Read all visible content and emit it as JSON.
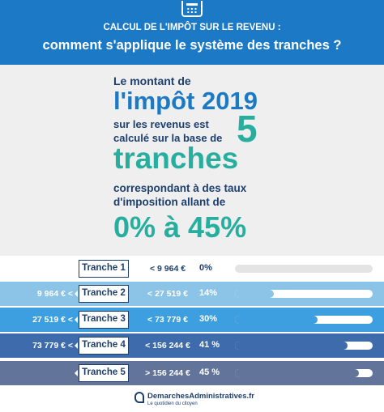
{
  "header": {
    "icon": "calculator-icon",
    "line1": "CALCUL DE L'IMPÔT SUR LE REVENU :",
    "line2": "comment s'applique le système des tranches ?"
  },
  "hero": {
    "line1": "Le montant de",
    "line2": "l'impôt 2019",
    "line3": "sur les revenus est",
    "line4": "calculé sur la base de",
    "number": "5",
    "line5": "tranches",
    "line6": "correspondant à des taux",
    "line7": "d'imposition allant de",
    "line8": "0% à 45%"
  },
  "tranches": [
    {
      "from": "",
      "label": "Tranche 1",
      "limit": "< 9 964 €",
      "rate": "0%",
      "level": 0
    },
    {
      "from": "9 964 € <",
      "label": "Tranche 2",
      "limit": "< 27 519 €",
      "rate": "14%",
      "level": 14
    },
    {
      "from": "27 519 € <",
      "label": "Tranche 3",
      "limit": "< 73 779 €",
      "rate": "30%",
      "level": 30
    },
    {
      "from": "73 779 € <",
      "label": "Tranche 4",
      "limit": "< 156 244 €",
      "rate": "41 %",
      "level": 41
    },
    {
      "from": "",
      "label": "Tranche 5",
      "limit": "> 156 244 €",
      "rate": "45 %",
      "level": 45
    }
  ],
  "colors": {
    "header": "#1b79c5",
    "navy": "#1d3f6d",
    "teal": "#27ae9e",
    "row2": "#8cc4e8",
    "row3": "#3e9fe0",
    "row4": "#3d6bac",
    "row5": "#63749a"
  },
  "footer": {
    "logo": "logo-icon",
    "title": "DemarchesAdministratives.fr",
    "subtitle": "Le quotidien du citoyen"
  }
}
